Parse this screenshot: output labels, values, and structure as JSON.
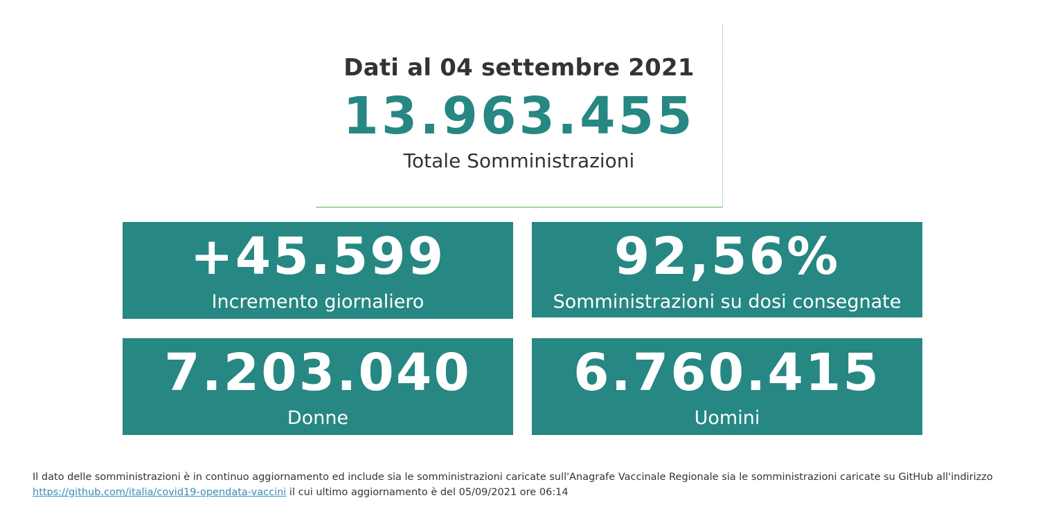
{
  "header": {
    "date_title": "Dati al 04 settembre 2021",
    "total_value": "13.963.455",
    "total_label": "Totale Somministrazioni"
  },
  "cards": [
    {
      "value": "+45.599",
      "label": "Incremento giornaliero"
    },
    {
      "value": "92,56%",
      "label": "Somministrazioni su dosi consegnate"
    },
    {
      "value": "7.203.040",
      "label": "Donne"
    },
    {
      "value": "6.760.415",
      "label": "Uomini"
    }
  ],
  "footer": {
    "text_before": "Il dato delle somministrazioni è in continuo aggiornamento ed include sia le somministrazioni caricate sull'Anagrafe Vaccinale Regionale sia le somministrazioni caricate su GitHub all'indirizzo ",
    "link_text": "https://github.com/italia/covid19-opendata-vaccini",
    "text_after": " il cui ultimo aggiornamento è del 05/09/2021 ore 06:14"
  },
  "colors": {
    "accent": "#268783",
    "text": "#333333",
    "divider": "#44bb44",
    "link": "#3a8ab8"
  }
}
